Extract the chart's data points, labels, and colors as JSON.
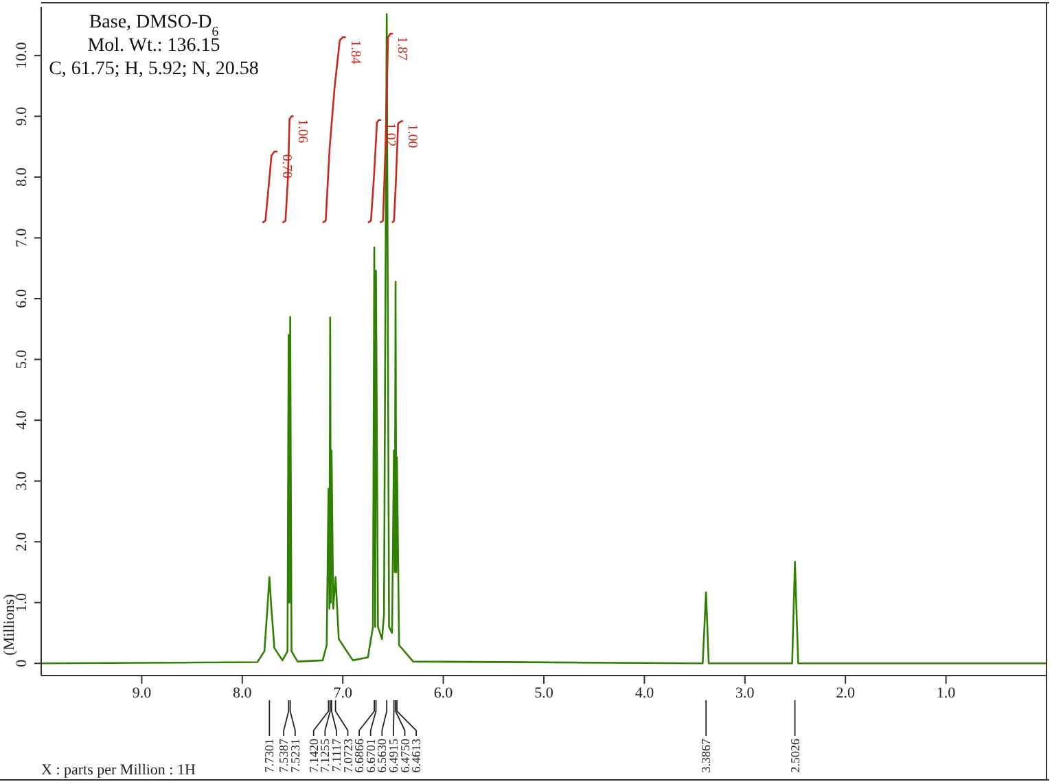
{
  "chart_data": {
    "type": "line",
    "title": "Base, DMSO-D$_{6}$",
    "subtitle": "Mol. Wt.: 136.15",
    "xlabel": "X : parts per Million : 1H",
    "ylabel": "(Millions)",
    "annotations": [
      "C, 61.75; H, 5.92; N, 20.58",
      {
        "text": "0.70",
        "x": 7.65,
        "y": 8.42
      },
      {
        "text": "1.06",
        "x": 7.49,
        "y": 9.0
      },
      {
        "text": "1.84",
        "x": 6.97,
        "y": 10.3
      },
      {
        "text": "1.02",
        "x": 6.62,
        "y": 8.94
      },
      {
        "text": "1.87",
        "x": 6.5,
        "y": 10.36
      },
      {
        "text": "1.00",
        "x": 6.4,
        "y": 8.92
      },
      {
        "text": "7.7301",
        "x": 7.7301
      },
      {
        "text": "7.5387",
        "x": 7.5387
      },
      {
        "text": "7.5231",
        "x": 7.5231
      },
      {
        "text": "7.1420",
        "x": 7.142
      },
      {
        "text": "7.1255",
        "x": 7.1255
      },
      {
        "text": "7.1117",
        "x": 7.1117
      },
      {
        "text": "7.0723",
        "x": 7.0723
      },
      {
        "text": "6.6866",
        "x": 6.6866
      },
      {
        "text": "6.6701",
        "x": 6.6701
      },
      {
        "text": "6.5630",
        "x": 6.563
      },
      {
        "text": "6.4915",
        "x": 6.4915
      },
      {
        "text": "6.4750",
        "x": 6.475
      },
      {
        "text": "6.4613",
        "x": 6.4613
      },
      {
        "text": "3.3867",
        "x": 3.3867
      },
      {
        "text": "2.5026",
        "x": 2.5026
      }
    ],
    "xlim": [
      10,
      0
    ],
    "ylim": [
      -0.2,
      10.8
    ],
    "xticks": [
      {
        "value": 9,
        "label": "9.0"
      },
      {
        "value": 8,
        "label": "8.0"
      },
      {
        "value": 7,
        "label": "7.0"
      },
      {
        "value": 6,
        "label": "6.0"
      },
      {
        "value": 5,
        "label": "5.0"
      },
      {
        "value": 4,
        "label": "4.0"
      },
      {
        "value": 3,
        "label": "3.0"
      },
      {
        "value": 2,
        "label": "2.0"
      },
      {
        "value": 1,
        "label": "1.0"
      }
    ],
    "yticks": [
      0,
      {
        "value": 1,
        "label": "1.0"
      },
      {
        "value": 2,
        "label": "2.0"
      },
      {
        "value": 3,
        "label": "3.0"
      },
      {
        "value": 4,
        "label": "4.0"
      },
      {
        "value": 5,
        "label": "5.0"
      },
      {
        "value": 6,
        "label": "6.0"
      },
      {
        "value": 7,
        "label": "7.0"
      },
      {
        "value": 8,
        "label": "8.0"
      },
      {
        "value": 9,
        "label": "9.0"
      },
      {
        "value": 10,
        "label": "10.0"
      }
    ],
    "marker": "none",
    "line_style": "solid",
    "series": [
      {
        "color": "#2f8000",
        "x": [
          10,
          7.85,
          7.78,
          7.75,
          7.73,
          7.71,
          7.68,
          7.6,
          7.55,
          7.5387,
          7.531,
          7.5231,
          7.51,
          7.45,
          7.2,
          7.16,
          7.142,
          7.133,
          7.1255,
          7.118,
          7.1117,
          7.095,
          7.0723,
          7.04,
          6.9,
          6.75,
          6.7,
          6.6866,
          6.678,
          6.6701,
          6.65,
          6.61,
          6.59,
          6.563,
          6.54,
          6.51,
          6.4915,
          6.483,
          6.475,
          6.468,
          6.4613,
          6.44,
          6.3,
          3.42,
          3.3867,
          3.36,
          2.53,
          2.5026,
          2.47,
          0
        ],
        "values": [
          0,
          0.02,
          0.2,
          0.9,
          1.42,
          0.9,
          0.25,
          0.05,
          0.2,
          5.4,
          1.0,
          5.7,
          0.2,
          0.03,
          0.05,
          0.3,
          2.87,
          0.9,
          5.69,
          1.0,
          3.5,
          0.9,
          1.42,
          0.4,
          0.05,
          0.1,
          0.6,
          6.84,
          0.6,
          6.46,
          0.6,
          0.4,
          0.8,
          10.68,
          0.6,
          0.5,
          3.5,
          1.5,
          6.28,
          1.5,
          3.39,
          0.3,
          0.03,
          0,
          1.17,
          0,
          0,
          1.67,
          0,
          0
        ]
      },
      {
        "color": "#c8281e",
        "x": [
          7.8,
          7.77,
          7.74,
          7.71,
          7.68,
          7.65
        ],
        "values": [
          7.25,
          7.28,
          7.8,
          8.35,
          8.42,
          8.42
        ]
      },
      {
        "color": "#c8281e",
        "x": [
          7.6,
          7.57,
          7.545,
          7.53,
          7.51,
          7.49
        ],
        "values": [
          7.25,
          7.28,
          8.0,
          8.95,
          9.0,
          9.0
        ]
      },
      {
        "color": "#c8281e",
        "x": [
          7.2,
          7.17,
          7.13,
          7.08,
          7.03,
          7.0,
          6.97
        ],
        "values": [
          7.25,
          7.28,
          8.5,
          9.5,
          10.25,
          10.3,
          10.3
        ]
      },
      {
        "color": "#c8281e",
        "x": [
          6.75,
          6.72,
          6.69,
          6.66,
          6.64,
          6.62
        ],
        "values": [
          7.25,
          7.28,
          8.0,
          8.9,
          8.94,
          8.94
        ]
      },
      {
        "color": "#c8281e",
        "x": [
          6.63,
          6.6,
          6.575,
          6.55,
          6.525,
          6.5
        ],
        "values": [
          7.25,
          7.28,
          8.5,
          10.3,
          10.36,
          10.36
        ]
      },
      {
        "color": "#c8281e",
        "x": [
          6.51,
          6.49,
          6.47,
          6.45,
          6.42,
          6.4
        ],
        "values": [
          7.25,
          7.28,
          8.0,
          8.88,
          8.92,
          8.92
        ]
      }
    ]
  }
}
